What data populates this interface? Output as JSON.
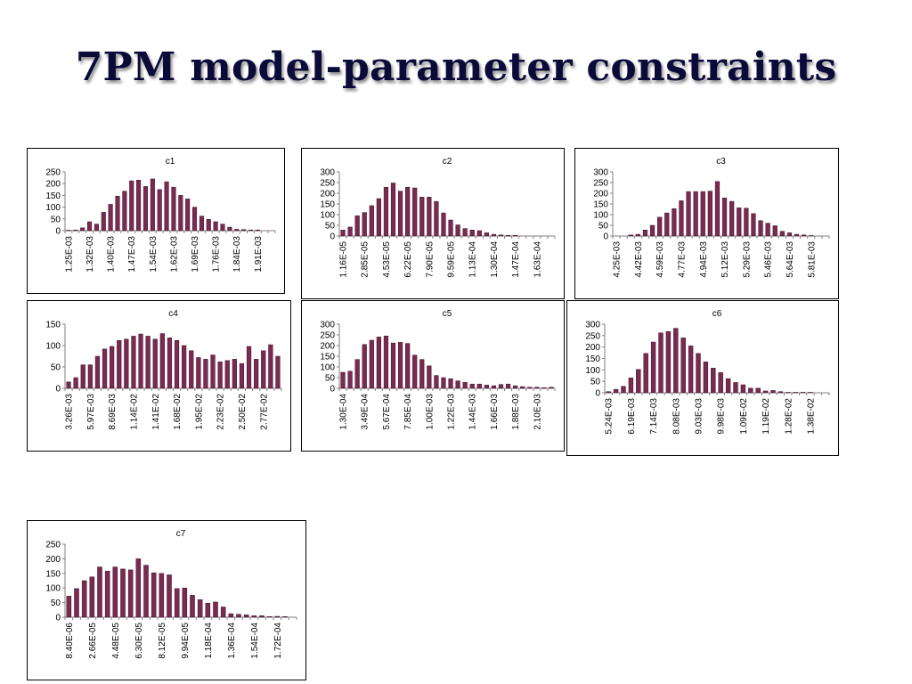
{
  "slide": {
    "title": "7PM model-parameter constraints"
  },
  "colors": {
    "bar_fill": "#7b2a52",
    "bar_stroke": "#3a0f26",
    "axis": "#808080"
  },
  "chart_data": [
    {
      "type": "bar",
      "title": "c1",
      "ylim": [
        0,
        250
      ],
      "yticks": [
        0,
        50,
        100,
        150,
        200,
        250
      ],
      "tick_labels": [
        "1.25E-03",
        "1.32E-03",
        "1.40E-03",
        "1.47E-03",
        "1.54E-03",
        "1.62E-03",
        "1.69E-03",
        "1.76E-03",
        "1.84E-03",
        "1.91E-03"
      ],
      "values": [
        2,
        3,
        12,
        38,
        28,
        78,
        112,
        147,
        168,
        212,
        215,
        188,
        220,
        175,
        208,
        185,
        150,
        135,
        100,
        62,
        48,
        38,
        28,
        15,
        6,
        5,
        3,
        3,
        0,
        0
      ]
    },
    {
      "type": "bar",
      "title": "c2",
      "ylim": [
        0,
        300
      ],
      "yticks": [
        0,
        50,
        100,
        150,
        200,
        250,
        300
      ],
      "tick_labels": [
        "1.16E-05",
        "2.85E-05",
        "4.53E-05",
        "6.22E-05",
        "7.90E-05",
        "9.59E-05",
        "1.13E-04",
        "1.30E-04",
        "1.47E-04",
        "1.63E-04"
      ],
      "values": [
        28,
        42,
        95,
        110,
        142,
        175,
        228,
        248,
        210,
        228,
        225,
        182,
        182,
        162,
        108,
        75,
        52,
        35,
        28,
        25,
        15,
        8,
        5,
        3,
        3,
        0,
        0,
        0,
        0,
        0
      ]
    },
    {
      "type": "bar",
      "title": "c3",
      "ylim": [
        0,
        300
      ],
      "yticks": [
        0,
        50,
        100,
        150,
        200,
        250,
        300
      ],
      "tick_labels": [
        "4.25E-03",
        "4.42E-03",
        "4.59E-03",
        "4.77E-03",
        "4.94E-03",
        "5.12E-03",
        "5.29E-03",
        "5.46E-03",
        "5.64E-03",
        "5.81E-03"
      ],
      "values": [
        0,
        0,
        5,
        8,
        28,
        50,
        88,
        108,
        128,
        165,
        208,
        208,
        208,
        210,
        255,
        178,
        162,
        132,
        130,
        105,
        72,
        60,
        48,
        22,
        15,
        8,
        5,
        2,
        0,
        0
      ]
    },
    {
      "type": "bar",
      "title": "c4",
      "ylim": [
        0,
        150
      ],
      "yticks": [
        0,
        50,
        100,
        150
      ],
      "tick_labels": [
        "3.26E-03",
        "5.97E-03",
        "8.69E-03",
        "1.14E-02",
        "1.41E-02",
        "1.68E-02",
        "1.95E-02",
        "2.23E-02",
        "2.50E-02",
        "2.77E-02"
      ],
      "values": [
        15,
        25,
        55,
        55,
        75,
        92,
        98,
        112,
        115,
        122,
        127,
        122,
        115,
        128,
        118,
        112,
        100,
        88,
        72,
        68,
        78,
        62,
        65,
        68,
        58,
        98,
        68,
        88,
        102,
        75
      ]
    },
    {
      "type": "bar",
      "title": "c5",
      "ylim": [
        0,
        300
      ],
      "yticks": [
        0,
        50,
        100,
        150,
        200,
        250,
        300
      ],
      "tick_labels": [
        "1.30E-04",
        "3.49E-04",
        "5.67E-04",
        "7.85E-04",
        "1.00E-03",
        "1.22E-03",
        "1.44E-03",
        "1.66E-03",
        "1.88E-03",
        "2.10E-03"
      ],
      "values": [
        75,
        80,
        135,
        205,
        225,
        240,
        245,
        212,
        215,
        210,
        155,
        135,
        105,
        60,
        50,
        45,
        35,
        28,
        20,
        20,
        15,
        12,
        18,
        20,
        12,
        8,
        5,
        5,
        3,
        5
      ]
    },
    {
      "type": "bar",
      "title": "c6",
      "ylim": [
        0,
        300
      ],
      "yticks": [
        0,
        50,
        100,
        150,
        200,
        250,
        300
      ],
      "tick_labels": [
        "5.24E-03",
        "6.19E-03",
        "7.14E-03",
        "8.08E-03",
        "9.03E-03",
        "9.98E-03",
        "1.09E-02",
        "1.19E-02",
        "1.28E-02",
        "1.38E-02"
      ],
      "values": [
        5,
        15,
        28,
        65,
        102,
        172,
        222,
        262,
        268,
        282,
        240,
        205,
        172,
        135,
        108,
        88,
        62,
        45,
        35,
        20,
        20,
        8,
        10,
        5,
        2,
        2,
        2,
        2,
        0,
        0
      ]
    },
    {
      "type": "bar",
      "title": "c7",
      "ylim": [
        0,
        250
      ],
      "yticks": [
        0,
        50,
        100,
        150,
        200,
        250
      ],
      "tick_labels": [
        "8.40E-06",
        "2.66E-05",
        "4.48E-05",
        "6.30E-05",
        "8.12E-05",
        "9.94E-05",
        "1.18E-04",
        "1.36E-04",
        "1.54E-04",
        "1.72E-04"
      ],
      "values": [
        72,
        98,
        125,
        138,
        172,
        158,
        172,
        165,
        162,
        200,
        178,
        152,
        150,
        145,
        98,
        100,
        75,
        60,
        48,
        52,
        35,
        12,
        10,
        8,
        5,
        5,
        2,
        3,
        2,
        0
      ]
    }
  ]
}
